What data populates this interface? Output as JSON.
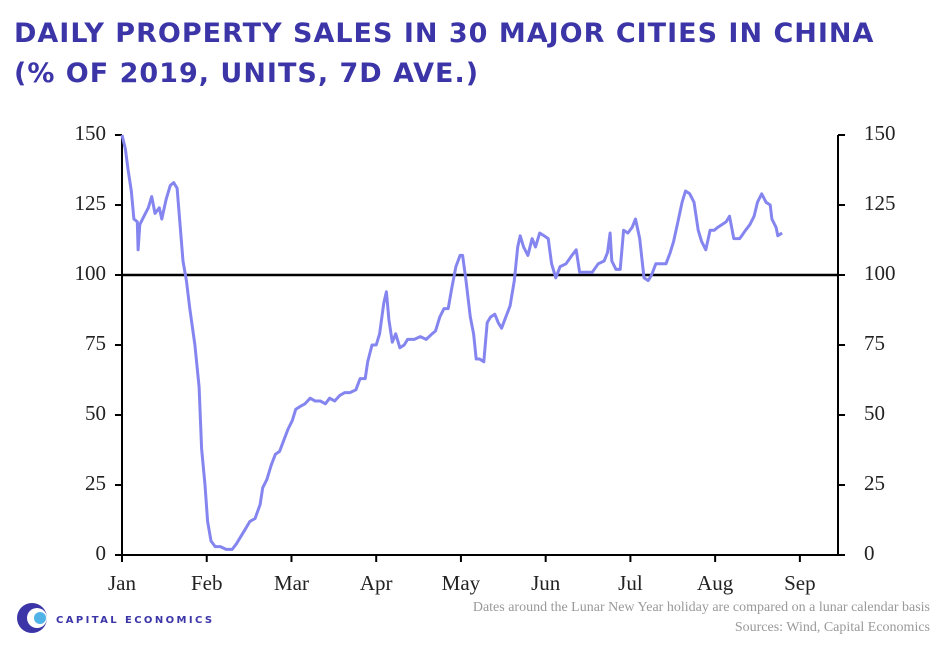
{
  "chart_data": {
    "type": "line",
    "title": "DAILY PROPERTY SALES IN 30 MAJOR CITIES IN CHINA",
    "subtitle": "(% OF 2019, UNITS, 7D AVE.)",
    "note": "Dates around the Lunar New Year holiday are compared on a lunar calendar basis",
    "source": "Sources: Wind, Capital Economics",
    "brand": "CAPITAL ECONOMICS",
    "xlim": [
      0,
      8.45
    ],
    "xticks": [
      {
        "value": 0,
        "label": "Jan"
      },
      {
        "value": 1,
        "label": "Feb"
      },
      {
        "value": 2,
        "label": "Mar"
      },
      {
        "value": 3,
        "label": "Apr"
      },
      {
        "value": 4,
        "label": "May"
      },
      {
        "value": 5,
        "label": "Jun"
      },
      {
        "value": 6,
        "label": "Jul"
      },
      {
        "value": 7,
        "label": "Aug"
      },
      {
        "value": 8,
        "label": "Sep"
      }
    ],
    "ylim": [
      0,
      150
    ],
    "yticks": [
      0,
      25,
      50,
      75,
      100,
      125,
      150
    ],
    "y2lim": [
      0,
      150
    ],
    "y2ticks": [
      0,
      25,
      50,
      75,
      100,
      125,
      150
    ],
    "reference_line": 100,
    "x": [
      0,
      0.04,
      0.07,
      0.11,
      0.14,
      0.18,
      0.19,
      0.21,
      0.26,
      0.31,
      0.35,
      0.39,
      0.44,
      0.47,
      0.52,
      0.57,
      0.61,
      0.65,
      0.68,
      0.72,
      0.76,
      0.8,
      0.86,
      0.91,
      0.94,
      0.98,
      1.01,
      1.05,
      1.1,
      1.16,
      1.23,
      1.3,
      1.35,
      1.39,
      1.45,
      1.51,
      1.57,
      1.63,
      1.66,
      1.71,
      1.76,
      1.81,
      1.86,
      1.91,
      1.96,
      2.01,
      2.05,
      2.1,
      2.16,
      2.22,
      2.28,
      2.34,
      2.4,
      2.45,
      2.51,
      2.57,
      2.63,
      2.69,
      2.76,
      2.81,
      2.87,
      2.9,
      2.95,
      3.0,
      3.04,
      3.09,
      3.12,
      3.15,
      3.19,
      3.23,
      3.28,
      3.33,
      3.37,
      3.45,
      3.52,
      3.59,
      3.66,
      3.7,
      3.75,
      3.8,
      3.85,
      3.89,
      3.94,
      3.99,
      4.02,
      4.06,
      4.11,
      4.15,
      4.18,
      4.22,
      4.27,
      4.31,
      4.35,
      4.4,
      4.44,
      4.48,
      4.53,
      4.58,
      4.63,
      4.67,
      4.7,
      4.74,
      4.79,
      4.84,
      4.88,
      4.93,
      4.98,
      5.03,
      5.07,
      5.12,
      5.17,
      5.24,
      5.31,
      5.36,
      5.4,
      5.47,
      5.55,
      5.62,
      5.69,
      5.73,
      5.76,
      5.78,
      5.83,
      5.88,
      5.92,
      5.97,
      6.02,
      6.06,
      6.11,
      6.16,
      6.21,
      6.25,
      6.3,
      6.35,
      6.42,
      6.47,
      6.51,
      6.56,
      6.61,
      6.65,
      6.7,
      6.75,
      6.8,
      6.84,
      6.89,
      6.94,
      6.99,
      7.03,
      7.08,
      7.13,
      7.17,
      7.22,
      7.29,
      7.36,
      7.41,
      7.46,
      7.5,
      7.55,
      7.6,
      7.65,
      7.67,
      7.72,
      7.74,
      7.79
    ],
    "series": [
      {
        "color": "#8585f0",
        "values": [
          150,
          145,
          138,
          130,
          120,
          119,
          109,
          118,
          121,
          124,
          128,
          122,
          124,
          120,
          127,
          132,
          133,
          131,
          120,
          105,
          98,
          88,
          75,
          60,
          38,
          25,
          12,
          5,
          3,
          3,
          2,
          2,
          4,
          6,
          9,
          12,
          13,
          18,
          24,
          27,
          32,
          36,
          37,
          41,
          45,
          48,
          52,
          53,
          54,
          56,
          55,
          55,
          54,
          56,
          55,
          57,
          58,
          58,
          59,
          63,
          63,
          69,
          75,
          75,
          79,
          90,
          94,
          84,
          76,
          79,
          74,
          75,
          77,
          77,
          78,
          77,
          79,
          80,
          85,
          88,
          88,
          95,
          103,
          107,
          107,
          98,
          85,
          79,
          70,
          70,
          69,
          83,
          85,
          86,
          83,
          81,
          85,
          89,
          98,
          110,
          114,
          110,
          107,
          113,
          110,
          115,
          114,
          113,
          104,
          99,
          103,
          104,
          107,
          109,
          101,
          101,
          101,
          104,
          105,
          108,
          115,
          105,
          102,
          102,
          116,
          115,
          117,
          120,
          113,
          99,
          98,
          100,
          104,
          104,
          104,
          108,
          112,
          119,
          126,
          130,
          129,
          126,
          116,
          112,
          109,
          116,
          116,
          117,
          118,
          119,
          121,
          113,
          113,
          116,
          118,
          121,
          126,
          129,
          126,
          125,
          120,
          117,
          114,
          115
        ]
      }
    ]
  }
}
